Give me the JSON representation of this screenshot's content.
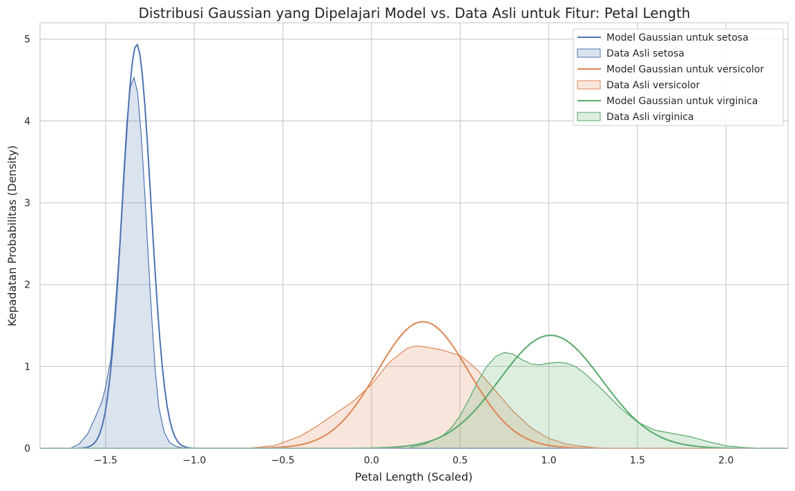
{
  "chart_data": {
    "type": "line",
    "title": "Distribusi Gaussian yang Dipelajari Model vs. Data Asli untuk Fitur: Petal Length",
    "xlabel": "Petal Length (Scaled)",
    "ylabel": "Kepadatan Probabilitas (Density)",
    "xlim": [
      -1.87,
      2.35
    ],
    "ylim": [
      0,
      5.2
    ],
    "xticks": [
      -1.5,
      -1.0,
      -0.5,
      0.0,
      0.5,
      1.0,
      1.5,
      2.0
    ],
    "xtick_labels": [
      "−1.5",
      "−1.0",
      "−0.5",
      "0.0",
      "0.5",
      "1.0",
      "1.5",
      "2.0"
    ],
    "yticks": [
      0,
      1,
      2,
      3,
      4,
      5
    ],
    "ytick_labels": [
      "0",
      "1",
      "2",
      "3",
      "4",
      "5"
    ],
    "grid": true,
    "legend_position": "top-right",
    "series": [
      {
        "name": "Model Gaussian untuk setosa",
        "kind": "gaussian",
        "mean": -1.325,
        "std": 0.0808,
        "color": "#4c72b0"
      },
      {
        "name": "Data Asli setosa",
        "kind": "kde",
        "color": "#4c72b0",
        "x": [
          -1.7,
          -1.65,
          -1.6,
          -1.55,
          -1.52,
          -1.5,
          -1.47,
          -1.45,
          -1.42,
          -1.4,
          -1.38,
          -1.36,
          -1.34,
          -1.32,
          -1.3,
          -1.28,
          -1.26,
          -1.24,
          -1.22,
          -1.2,
          -1.17,
          -1.14,
          -1.1,
          -1.05
        ],
        "y": [
          0.0,
          0.05,
          0.18,
          0.42,
          0.58,
          0.75,
          1.1,
          1.6,
          2.5,
          3.3,
          4.0,
          4.42,
          4.53,
          4.35,
          3.85,
          3.15,
          2.35,
          1.6,
          0.95,
          0.5,
          0.2,
          0.07,
          0.02,
          0.0
        ]
      },
      {
        "name": "Model Gaussian untuk versicolor",
        "kind": "gaussian",
        "mean": 0.29,
        "std": 0.258,
        "color": "#dd8452"
      },
      {
        "name": "Data Asli versicolor",
        "kind": "kde",
        "color": "#dd8452",
        "x": [
          -0.7,
          -0.55,
          -0.4,
          -0.3,
          -0.2,
          -0.1,
          0.0,
          0.1,
          0.2,
          0.25,
          0.3,
          0.4,
          0.5,
          0.55,
          0.6,
          0.7,
          0.8,
          0.9,
          1.0,
          1.1,
          1.2,
          1.3
        ],
        "y": [
          0.0,
          0.03,
          0.15,
          0.28,
          0.43,
          0.58,
          0.78,
          1.05,
          1.22,
          1.25,
          1.24,
          1.2,
          1.13,
          1.05,
          0.95,
          0.7,
          0.45,
          0.25,
          0.12,
          0.05,
          0.02,
          0.0
        ]
      },
      {
        "name": "Model Gaussian untuk virginica",
        "kind": "gaussian",
        "mean": 1.01,
        "std": 0.289,
        "color": "#55a868"
      },
      {
        "name": "Data Asli virginica",
        "kind": "kde",
        "color": "#55a868",
        "x": [
          0.2,
          0.3,
          0.4,
          0.45,
          0.5,
          0.55,
          0.6,
          0.65,
          0.7,
          0.75,
          0.8,
          0.85,
          0.9,
          0.95,
          1.0,
          1.05,
          1.1,
          1.15,
          1.2,
          1.3,
          1.4,
          1.5,
          1.6,
          1.7,
          1.8,
          1.9,
          2.0,
          2.1,
          2.2
        ],
        "y": [
          0.0,
          0.05,
          0.15,
          0.25,
          0.4,
          0.6,
          0.82,
          1.0,
          1.12,
          1.17,
          1.15,
          1.08,
          1.03,
          1.02,
          1.04,
          1.05,
          1.04,
          1.0,
          0.92,
          0.72,
          0.5,
          0.32,
          0.22,
          0.18,
          0.14,
          0.08,
          0.03,
          0.01,
          0.0
        ]
      }
    ]
  }
}
